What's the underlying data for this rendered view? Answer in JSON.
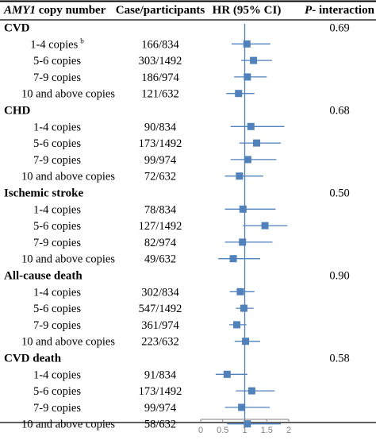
{
  "header": {
    "copy_number_gene": "AMY1",
    "copy_number_suffix": " copy number",
    "cases": "Case/participants",
    "hr": "HR (95% CI)",
    "p_prefix": "P",
    "p_suffix": "- interaction"
  },
  "footnote_marker": "b",
  "colors": {
    "marker": "#4f81bd",
    "ci": "#4f81bd",
    "axis": "#7f7f7f",
    "rule": "#000000"
  },
  "chart_data": {
    "type": "forest",
    "x_axis": {
      "ticks": [
        0,
        0.5,
        1,
        1.5,
        2
      ],
      "tick_labels": [
        "0",
        "0.5",
        "1",
        "1.5",
        "2"
      ],
      "range": [
        0,
        2
      ],
      "reference_line": 1
    },
    "groups": [
      {
        "name": "CVD",
        "p_interaction": "0.69",
        "rows": [
          {
            "label": "1-4 copies",
            "cases": "166/834",
            "hr": 1.05,
            "lo": 0.7,
            "hi": 1.58
          },
          {
            "label": "5-6 copies",
            "cases": "303/1492",
            "hr": 1.2,
            "lo": 0.92,
            "hi": 1.62
          },
          {
            "label": "7-9 copies",
            "cases": "186/974",
            "hr": 1.06,
            "lo": 0.76,
            "hi": 1.5
          },
          {
            "label": "10 and above copies",
            "cases": "121/632",
            "hr": 0.86,
            "lo": 0.58,
            "hi": 1.22
          }
        ]
      },
      {
        "name": "CHD",
        "p_interaction": "0.68",
        "rows": [
          {
            "label": "1-4 copies",
            "cases": "90/834",
            "hr": 1.14,
            "lo": 0.68,
            "hi": 1.9
          },
          {
            "label": "5-6 copies",
            "cases": "173/1492",
            "hr": 1.27,
            "lo": 0.88,
            "hi": 1.82
          },
          {
            "label": "7-9 copies",
            "cases": "99/974",
            "hr": 1.07,
            "lo": 0.68,
            "hi": 1.72
          },
          {
            "label": "10 and above copies",
            "cases": "72/632",
            "hr": 0.88,
            "lo": 0.55,
            "hi": 1.42
          }
        ]
      },
      {
        "name": "Ischemic stroke",
        "p_interaction": "0.50",
        "rows": [
          {
            "label": "1-4 copies",
            "cases": "78/834",
            "hr": 0.96,
            "lo": 0.55,
            "hi": 1.7
          },
          {
            "label": "5-6 copies",
            "cases": "127/1492",
            "hr": 1.46,
            "lo": 0.96,
            "hi": 1.97
          },
          {
            "label": "7-9 copies",
            "cases": "82/974",
            "hr": 0.95,
            "lo": 0.55,
            "hi": 1.63
          },
          {
            "label": "10 and above copies",
            "cases": "49/632",
            "hr": 0.74,
            "lo": 0.4,
            "hi": 1.35
          }
        ]
      },
      {
        "name": "All-cause death",
        "p_interaction": "0.90",
        "rows": [
          {
            "label": "1-4 copies",
            "cases": "302/834",
            "hr": 0.9,
            "lo": 0.66,
            "hi": 1.22
          },
          {
            "label": "5-6 copies",
            "cases": "547/1492",
            "hr": 0.98,
            "lo": 0.8,
            "hi": 1.2
          },
          {
            "label": "7-9 copies",
            "cases": "361/974",
            "hr": 0.82,
            "lo": 0.65,
            "hi": 1.04
          },
          {
            "label": "10 and above copies",
            "cases": "223/632",
            "hr": 1.02,
            "lo": 0.77,
            "hi": 1.35
          }
        ]
      },
      {
        "name": "CVD death",
        "p_interaction": "0.58",
        "rows": [
          {
            "label": "1-4 copies",
            "cases": "91/834",
            "hr": 0.6,
            "lo": 0.34,
            "hi": 1.06
          },
          {
            "label": "5-6 copies",
            "cases": "173/1492",
            "hr": 1.16,
            "lo": 0.8,
            "hi": 1.68
          },
          {
            "label": "7-9 copies",
            "cases": "99/974",
            "hr": 0.93,
            "lo": 0.55,
            "hi": 1.57
          },
          {
            "label": "10 and above copies",
            "cases": "58/632",
            "hr": 1.06,
            "lo": 0.6,
            "hi": 1.82
          }
        ]
      }
    ]
  }
}
